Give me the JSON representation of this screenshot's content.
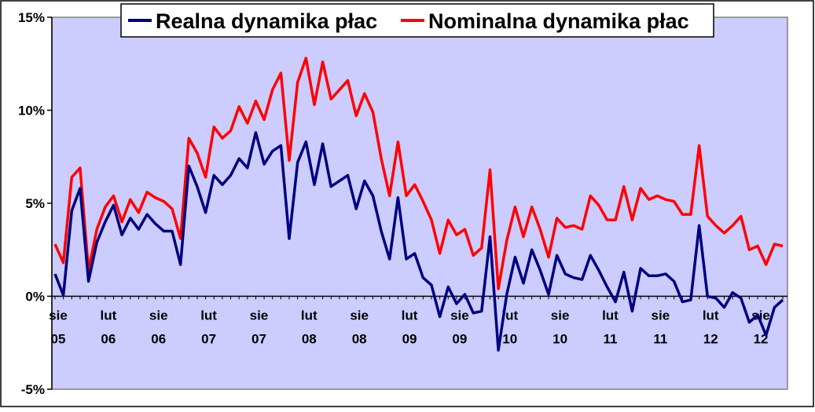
{
  "chart_data": {
    "type": "line",
    "title": "",
    "xlabel": "",
    "ylabel": "",
    "ylim": [
      -5,
      15
    ],
    "y_ticks": [
      "-5%",
      "0%",
      "5%",
      "10%",
      "15%"
    ],
    "y_tick_values": [
      -5,
      0,
      5,
      10,
      15
    ],
    "x_start": "2005-08",
    "x_tick_labels": [
      {
        "month": "sie",
        "year": "05",
        "date": "2005-08"
      },
      {
        "month": "lut",
        "year": "06",
        "date": "2006-02"
      },
      {
        "month": "sie",
        "year": "06",
        "date": "2006-08"
      },
      {
        "month": "lut",
        "year": "07",
        "date": "2007-02"
      },
      {
        "month": "sie",
        "year": "07",
        "date": "2007-08"
      },
      {
        "month": "lut",
        "year": "08",
        "date": "2008-02"
      },
      {
        "month": "sie",
        "year": "08",
        "date": "2008-08"
      },
      {
        "month": "lut",
        "year": "09",
        "date": "2009-02"
      },
      {
        "month": "sie",
        "year": "09",
        "date": "2009-08"
      },
      {
        "month": "lut",
        "year": "10",
        "date": "2010-02"
      },
      {
        "month": "sie",
        "year": "10",
        "date": "2010-08"
      },
      {
        "month": "lut",
        "year": "11",
        "date": "2011-02"
      },
      {
        "month": "sie",
        "year": "11",
        "date": "2011-08"
      },
      {
        "month": "lut",
        "year": "12",
        "date": "2012-02"
      },
      {
        "month": "sie",
        "year": "12",
        "date": "2012-08"
      }
    ],
    "grid": false,
    "legend_position": "top",
    "plot_background": "#ccccff",
    "series": [
      {
        "name": "Realna dynamika płac",
        "color": "#000080",
        "values": [
          1.2,
          0.05,
          4.6,
          5.8,
          0.8,
          2.9,
          4.0,
          4.9,
          3.3,
          4.2,
          3.6,
          4.4,
          3.9,
          3.5,
          3.5,
          1.7,
          7.0,
          5.9,
          4.5,
          6.5,
          6.0,
          6.5,
          7.4,
          6.9,
          8.8,
          7.1,
          7.8,
          8.1,
          3.1,
          7.2,
          8.3,
          6.0,
          8.2,
          5.9,
          6.2,
          6.5,
          4.7,
          6.2,
          5.4,
          3.5,
          2.0,
          5.3,
          2.0,
          2.3,
          1.0,
          0.6,
          -1.1,
          0.5,
          -0.4,
          0.1,
          -0.9,
          -0.8,
          3.2,
          -2.9,
          0.1,
          2.1,
          0.7,
          2.5,
          1.4,
          0.1,
          2.2,
          1.2,
          1.0,
          0.9,
          2.2,
          1.4,
          0.5,
          -0.3,
          1.3,
          -0.8,
          1.5,
          1.1,
          1.1,
          1.2,
          0.8,
          -0.3,
          -0.2,
          3.8,
          0.0,
          -0.1,
          -0.6,
          0.2,
          -0.1,
          -1.4,
          -1.0,
          -2.1,
          -0.6,
          -0.2
        ]
      },
      {
        "name": "Nominalna dynamika płac",
        "color": "#ff0000",
        "values": [
          2.8,
          1.8,
          6.4,
          6.9,
          1.4,
          3.6,
          4.8,
          5.4,
          4.0,
          5.2,
          4.5,
          5.6,
          5.3,
          5.1,
          4.7,
          3.1,
          8.5,
          7.7,
          6.4,
          9.1,
          8.5,
          8.9,
          10.2,
          9.3,
          10.5,
          9.5,
          11.1,
          12.0,
          7.3,
          11.5,
          12.8,
          10.3,
          12.6,
          10.6,
          11.1,
          11.6,
          9.7,
          10.9,
          9.9,
          7.4,
          5.4,
          8.3,
          5.4,
          6.0,
          5.1,
          4.1,
          2.3,
          4.1,
          3.3,
          3.6,
          2.2,
          2.6,
          6.8,
          0.4,
          3.0,
          4.8,
          3.2,
          4.8,
          3.6,
          2.1,
          4.2,
          3.7,
          3.8,
          3.6,
          5.4,
          4.9,
          4.1,
          4.1,
          5.9,
          4.1,
          5.8,
          5.2,
          5.4,
          5.2,
          5.1,
          4.4,
          4.4,
          8.1,
          4.3,
          3.8,
          3.4,
          3.8,
          4.3,
          2.5,
          2.7,
          1.7,
          2.8,
          2.7
        ]
      }
    ]
  }
}
